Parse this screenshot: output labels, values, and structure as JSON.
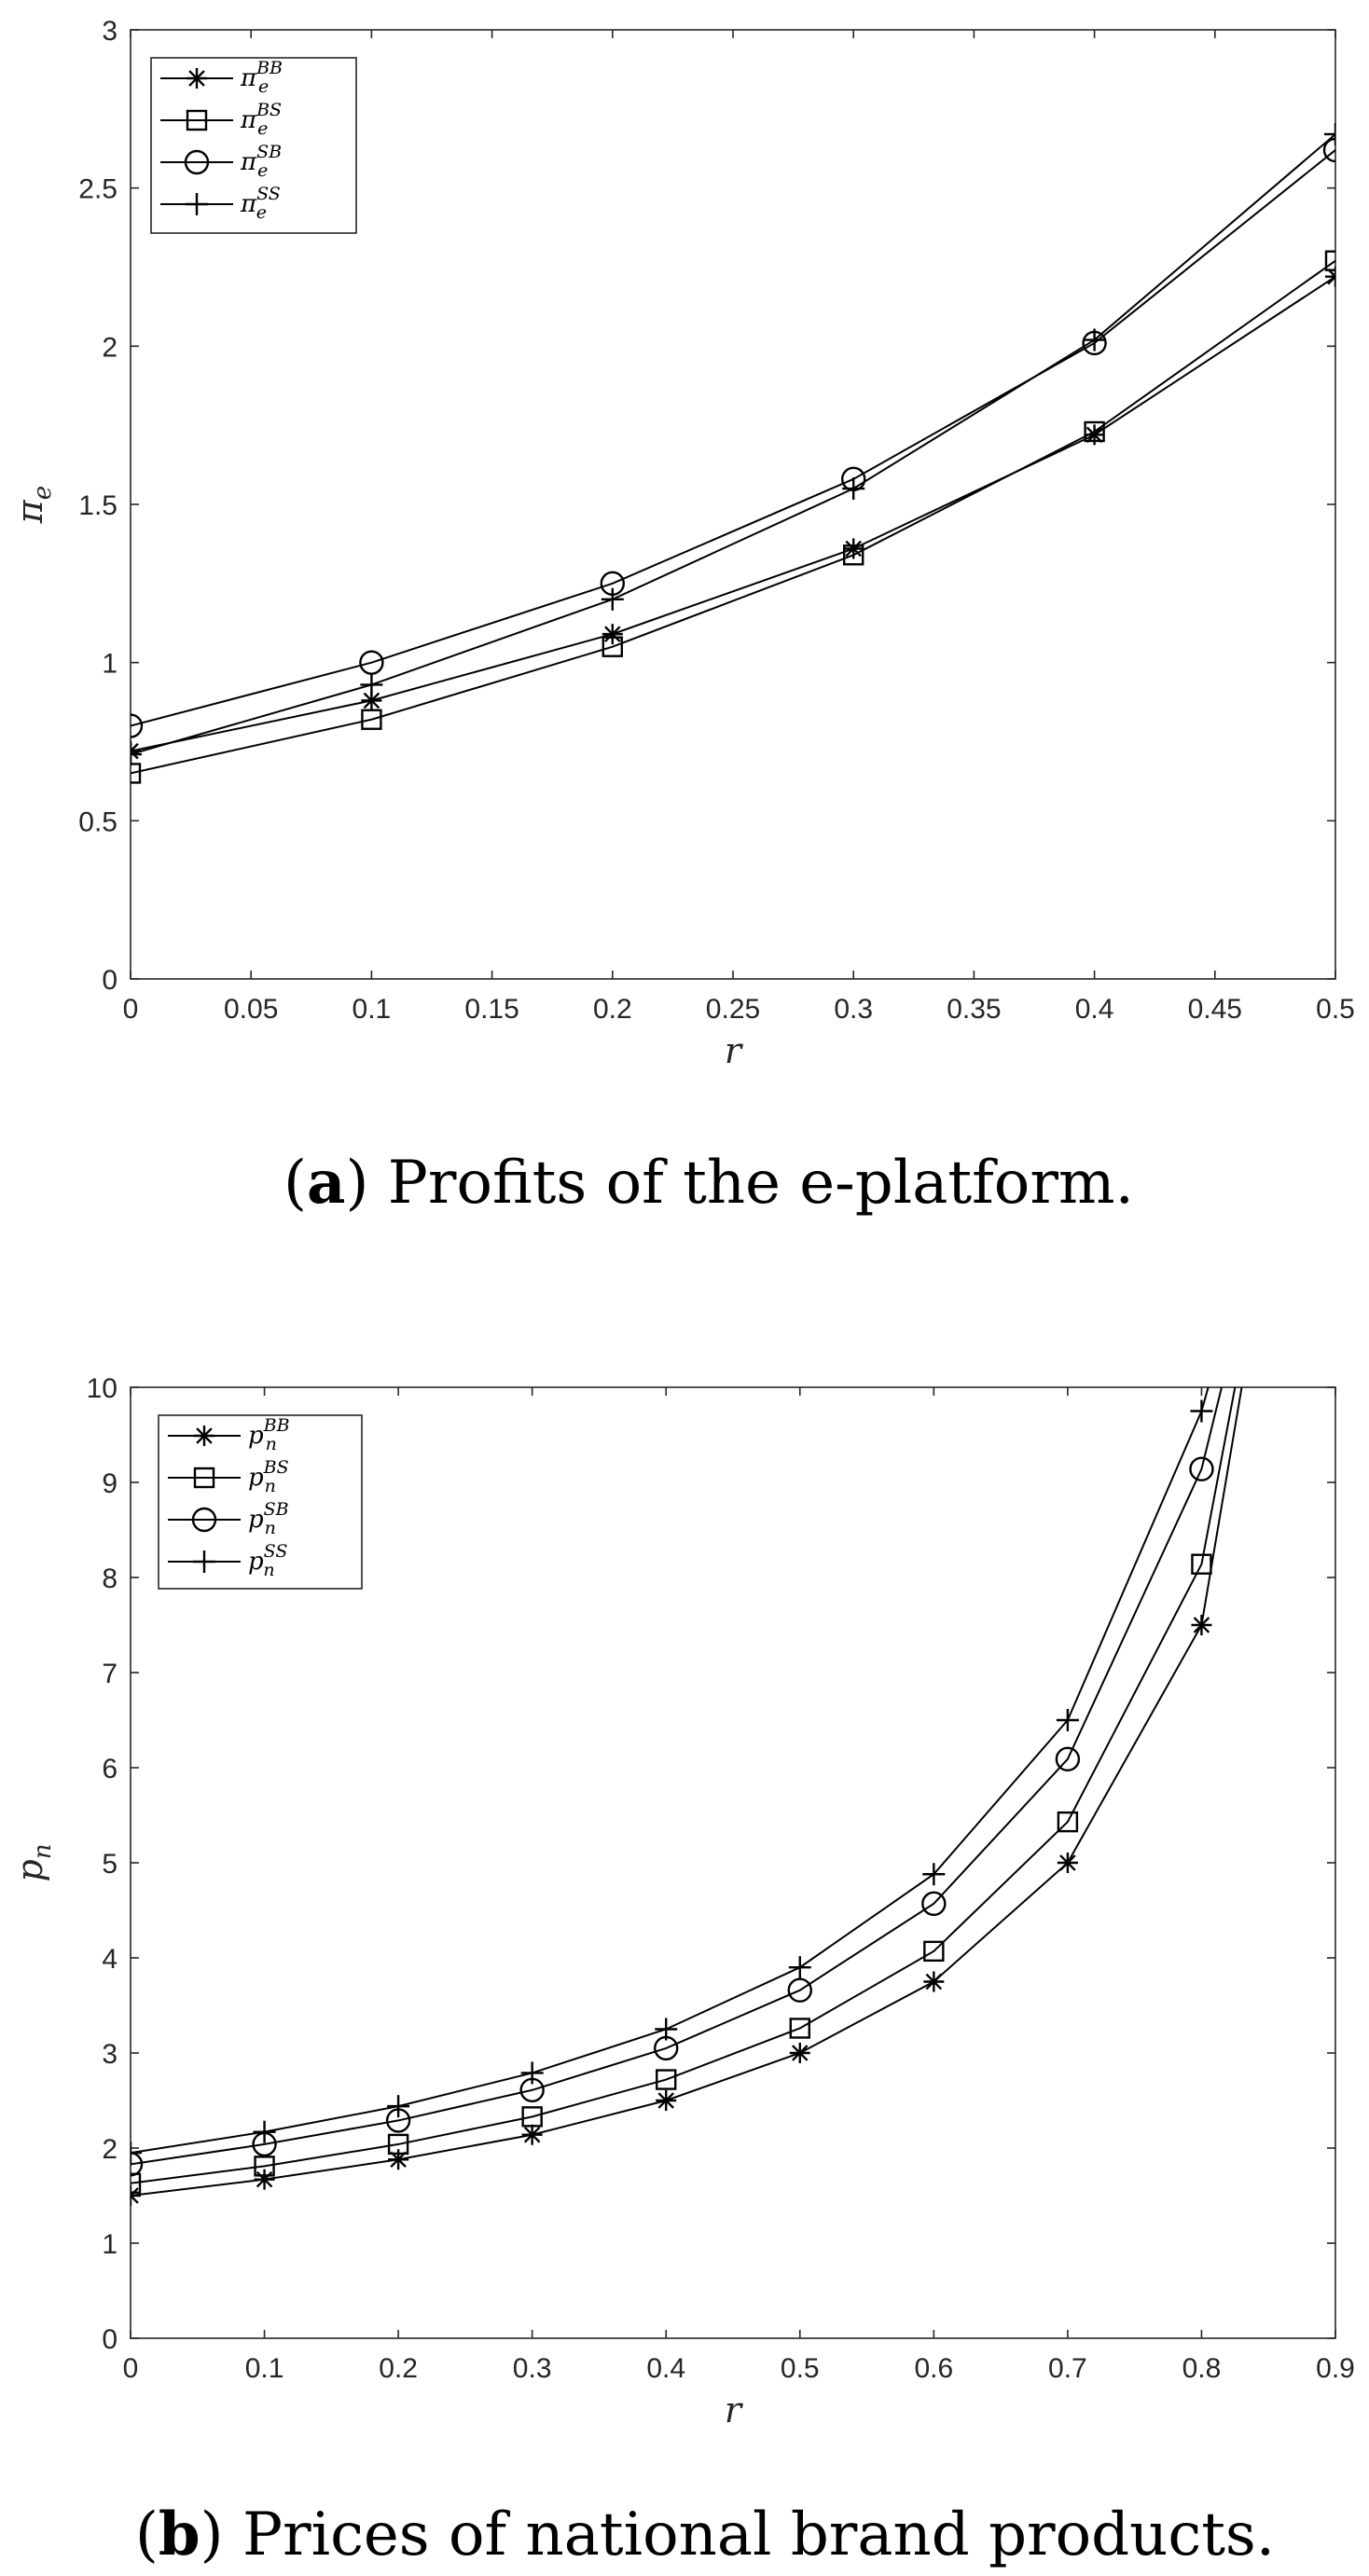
{
  "chart_data": [
    {
      "type": "line",
      "caption_label": "a",
      "caption_text": "Profits of the e-platform.",
      "xlabel": "r",
      "ylabel": "π_e",
      "ylabel_main": "π",
      "ylabel_sub": "e",
      "xlim": [
        0,
        0.5
      ],
      "ylim": [
        0,
        3
      ],
      "xticks": [
        "0",
        "0.05",
        "0.1",
        "0.15",
        "0.2",
        "0.25",
        "0.3",
        "0.35",
        "0.4",
        "0.45",
        "0.5"
      ],
      "yticks": [
        "0",
        "0.5",
        "1",
        "1.5",
        "2",
        "2.5",
        "3"
      ],
      "grid": false,
      "legend_position": "top-left",
      "x": [
        0,
        0.1,
        0.2,
        0.3,
        0.4,
        0.5
      ],
      "series": [
        {
          "name": "π_e^BB",
          "base": "π",
          "sub": "e",
          "sup": "BB",
          "marker": "asterisk",
          "values": [
            0.72,
            0.88,
            1.09,
            1.36,
            1.72,
            2.22
          ]
        },
        {
          "name": "π_e^BS",
          "base": "π",
          "sub": "e",
          "sup": "BS",
          "marker": "square",
          "values": [
            0.65,
            0.82,
            1.05,
            1.34,
            1.73,
            2.27
          ]
        },
        {
          "name": "π_e^SB",
          "base": "π",
          "sub": "e",
          "sup": "SB",
          "marker": "circle",
          "values": [
            0.8,
            1.0,
            1.25,
            1.58,
            2.01,
            2.62
          ]
        },
        {
          "name": "π_e^SS",
          "base": "π",
          "sub": "e",
          "sup": "SS",
          "marker": "plus",
          "values": [
            0.71,
            0.93,
            1.2,
            1.55,
            2.02,
            2.67
          ]
        }
      ]
    },
    {
      "type": "line",
      "caption_label": "b",
      "caption_text": "Prices of national brand products.",
      "xlabel": "r",
      "ylabel": "p_n",
      "ylabel_main": "p",
      "ylabel_sub": "n",
      "xlim": [
        0,
        0.9
      ],
      "ylim": [
        0,
        10
      ],
      "xticks": [
        "0",
        "0.1",
        "0.2",
        "0.3",
        "0.4",
        "0.5",
        "0.6",
        "0.7",
        "0.8",
        "0.9"
      ],
      "yticks": [
        "0",
        "1",
        "2",
        "3",
        "4",
        "5",
        "6",
        "7",
        "8",
        "9",
        "10"
      ],
      "grid": false,
      "legend_position": "top-left",
      "x": [
        0,
        0.1,
        0.2,
        0.3,
        0.4,
        0.5,
        0.6,
        0.7,
        0.8
      ],
      "series": [
        {
          "name": "p_n^BB",
          "base": "p",
          "sub": "n",
          "sup": "BB",
          "marker": "asterisk",
          "values": [
            1.5,
            1.67,
            1.88,
            2.14,
            2.5,
            3.0,
            3.75,
            5.0,
            7.5
          ],
          "tail": [
            [
              0.83,
              10
            ]
          ]
        },
        {
          "name": "p_n^BS",
          "base": "p",
          "sub": "n",
          "sup": "BS",
          "marker": "square",
          "values": [
            1.63,
            1.81,
            2.04,
            2.33,
            2.72,
            3.26,
            4.07,
            5.43,
            8.14
          ],
          "tail": [
            [
              0.825,
              10
            ]
          ]
        },
        {
          "name": "p_n^SB",
          "base": "p",
          "sub": "n",
          "sup": "SB",
          "marker": "circle",
          "values": [
            1.83,
            2.04,
            2.29,
            2.61,
            3.05,
            3.66,
            4.57,
            6.09,
            9.14
          ],
          "tail": [
            [
              0.815,
              10
            ]
          ]
        },
        {
          "name": "p_n^SS",
          "base": "p",
          "sub": "n",
          "sup": "SS",
          "marker": "plus",
          "values": [
            1.95,
            2.17,
            2.44,
            2.79,
            3.25,
            3.9,
            4.88,
            6.5,
            9.75
          ],
          "tail": [
            [
              0.805,
              10
            ]
          ]
        }
      ]
    }
  ]
}
